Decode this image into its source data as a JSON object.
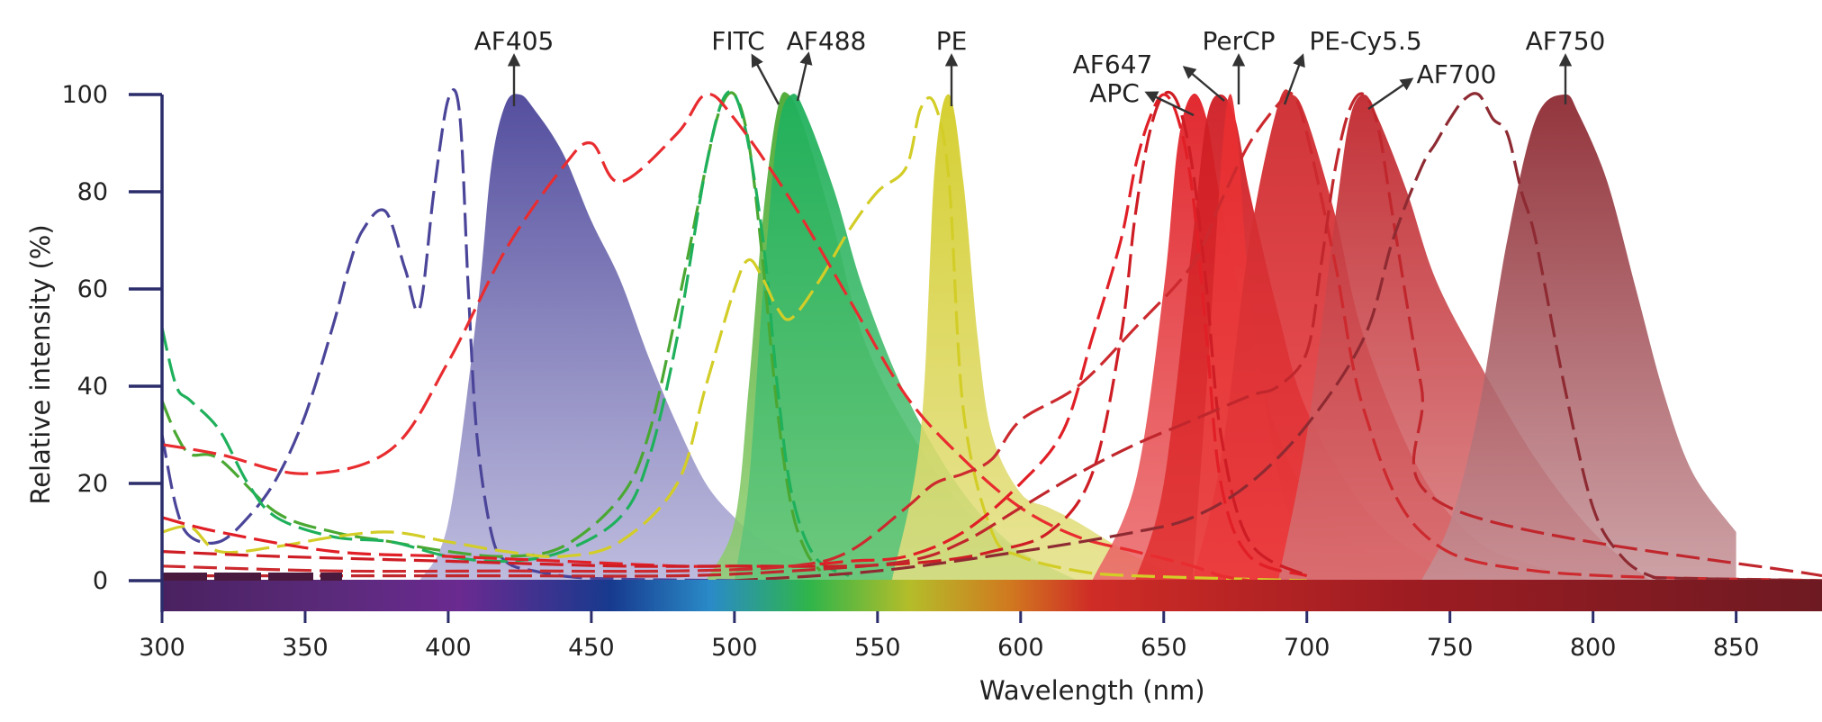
{
  "chart_data": {
    "type": "area",
    "xlabel": "Wavelength (nm)",
    "ylabel": "Relative intensity (%)",
    "xlim": [
      300,
      880
    ],
    "ylim": [
      0,
      100
    ],
    "x_ticks": [
      "300",
      "350",
      "400",
      "450",
      "500",
      "550",
      "600",
      "650",
      "700",
      "750",
      "800",
      "850"
    ],
    "y_ticks": [
      "0",
      "20",
      "40",
      "60",
      "80",
      "100"
    ],
    "grid": false,
    "legend": "none",
    "spectrum_bar": true,
    "series": [
      {
        "name": "AF405",
        "color": "#4b4599",
        "color_light": "#b2b0d8",
        "emission_x": [
          390,
          400,
          410,
          415,
          420,
          425,
          430,
          440,
          450,
          460,
          470,
          480,
          490,
          500,
          510,
          520,
          540,
          560
        ],
        "emission_y": [
          0,
          12,
          55,
          85,
          98,
          100,
          97,
          88,
          74,
          62,
          46,
          32,
          20,
          13,
          8,
          5,
          2,
          0
        ],
        "excitation_x": [
          300,
          305,
          310,
          320,
          330,
          340,
          350,
          360,
          365,
          370,
          378,
          385,
          390,
          395,
          400,
          404,
          407,
          410,
          415,
          420,
          430,
          450,
          500
        ],
        "excitation_y": [
          30,
          15,
          9,
          8,
          13,
          21,
          34,
          53,
          64,
          72,
          76,
          64,
          56,
          80,
          99,
          96,
          60,
          30,
          10,
          4,
          2,
          0.5,
          0
        ]
      },
      {
        "name": "FITC",
        "color": "#4aa832",
        "color_light": "#8fce6f",
        "emission_x": [
          490,
          500,
          505,
          510,
          515,
          519,
          525,
          535,
          545,
          560,
          580,
          600,
          620
        ],
        "emission_y": [
          0,
          12,
          40,
          75,
          97,
          100,
          92,
          72,
          50,
          32,
          15,
          6,
          0
        ],
        "excitation_x": [
          300,
          305,
          310,
          320,
          340,
          360,
          380,
          400,
          420,
          440,
          460,
          470,
          480,
          490,
          495,
          500,
          505,
          510,
          515,
          520,
          525,
          530
        ],
        "excitation_y": [
          37,
          30,
          26,
          25,
          14,
          10,
          8,
          6,
          5,
          7,
          17,
          30,
          56,
          85,
          97,
          100,
          90,
          65,
          35,
          15,
          6,
          2
        ]
      },
      {
        "name": "AF488",
        "color": "#1fb05c",
        "color_light": "#64c67c",
        "emission_x": [
          500,
          505,
          510,
          515,
          520,
          525,
          535,
          545,
          560,
          580,
          600,
          620
        ],
        "emission_y": [
          0,
          20,
          60,
          92,
          100,
          96,
          80,
          60,
          38,
          18,
          6,
          0
        ],
        "excitation_x": [
          300,
          305,
          310,
          320,
          330,
          340,
          360,
          380,
          400,
          420,
          440,
          460,
          470,
          480,
          490,
          497,
          503,
          510,
          515,
          520,
          528,
          540
        ],
        "excitation_y": [
          52,
          40,
          37,
          31,
          20,
          13,
          9,
          8,
          5,
          4,
          6,
          13,
          25,
          50,
          85,
          100,
          95,
          70,
          40,
          18,
          5,
          1
        ]
      },
      {
        "name": "PE",
        "color": "#d3cd27",
        "color_light": "#e3df84",
        "emission_x": [
          555,
          565,
          570,
          575,
          580,
          585,
          590,
          600,
          610,
          620,
          640,
          660
        ],
        "emission_y": [
          0,
          30,
          85,
          100,
          82,
          50,
          30,
          18,
          15,
          12,
          5,
          0
        ],
        "excitation_x": [
          300,
          310,
          320,
          340,
          360,
          380,
          400,
          420,
          440,
          460,
          480,
          490,
          500,
          505,
          510,
          515,
          520,
          530,
          540,
          550,
          560,
          565,
          570,
          575,
          580,
          590,
          600,
          620,
          640,
          700
        ],
        "excitation_y": [
          10,
          11,
          6,
          7,
          9,
          10,
          8,
          6,
          5,
          8,
          20,
          40,
          60,
          66,
          62,
          56,
          54,
          62,
          72,
          80,
          85,
          97,
          98,
          82,
          35,
          10,
          5,
          2,
          1,
          0
        ]
      },
      {
        "name": "APC",
        "color": "#e01f26",
        "color_light": "#ea6567",
        "emission_x": [
          625,
          640,
          650,
          655,
          660,
          665,
          670,
          680,
          690,
          700,
          720,
          740
        ],
        "emission_y": [
          0,
          20,
          60,
          90,
          100,
          95,
          78,
          50,
          30,
          18,
          6,
          0
        ],
        "excitation_x": [
          300,
          320,
          360,
          400,
          440,
          480,
          500,
          520,
          540,
          560,
          580,
          600,
          615,
          625,
          635,
          640,
          645,
          650,
          655,
          660,
          665,
          670,
          680,
          700
        ],
        "excitation_y": [
          13,
          10,
          6,
          5,
          4,
          3,
          3,
          3,
          4,
          5,
          10,
          20,
          31,
          50,
          70,
          85,
          95,
          100,
          95,
          80,
          50,
          20,
          5,
          1
        ]
      },
      {
        "name": "AF647",
        "color": "#ce1d24",
        "color_light": "#e23030",
        "emission_x": [
          640,
          650,
          660,
          665,
          670,
          675,
          680,
          690,
          700,
          720,
          740,
          760
        ],
        "emission_y": [
          0,
          20,
          70,
          95,
          100,
          95,
          80,
          55,
          35,
          15,
          5,
          0
        ],
        "excitation_x": [
          300,
          340,
          400,
          460,
          500,
          540,
          570,
          590,
          610,
          625,
          635,
          640,
          645,
          650,
          655,
          660,
          665,
          670,
          680,
          700
        ],
        "excitation_y": [
          6,
          5,
          4,
          3,
          3,
          3,
          4,
          6,
          10,
          22,
          50,
          75,
          92,
          100,
          98,
          85,
          60,
          30,
          8,
          1
        ]
      },
      {
        "name": "PerCP",
        "color": "#e82c2f",
        "color_light": "#eb4a49",
        "emission_x": [
          660,
          665,
          670,
          673,
          676,
          680,
          690,
          700,
          720
        ],
        "emission_y": [
          0,
          40,
          85,
          100,
          90,
          60,
          22,
          8,
          0
        ],
        "excitation_x": [
          300,
          320,
          350,
          380,
          400,
          420,
          440,
          450,
          460,
          480,
          490,
          500,
          520,
          540,
          560,
          580,
          600,
          620,
          640,
          660,
          670,
          680
        ],
        "excitation_y": [
          28,
          26,
          22,
          27,
          45,
          68,
          85,
          90,
          82,
          92,
          100,
          95,
          78,
          58,
          38,
          25,
          15,
          9,
          6,
          3,
          1,
          0
        ]
      },
      {
        "name": "PE-Cy5.5",
        "color": "#cc2a2e",
        "color_light": "#ec3a3d",
        "emission_x": [
          660,
          670,
          680,
          690,
          695,
          700,
          710,
          720,
          740,
          760,
          780,
          800
        ],
        "emission_y": [
          0,
          25,
          70,
          98,
          100,
          95,
          75,
          50,
          22,
          8,
          3,
          0
        ],
        "excitation_x": [
          300,
          360,
          420,
          480,
          520,
          540,
          560,
          570,
          580,
          590,
          600,
          620,
          640,
          660,
          670,
          680,
          690,
          695,
          700,
          710,
          720,
          740,
          780,
          880
        ],
        "excitation_y": [
          3,
          2,
          2,
          2,
          3,
          6,
          15,
          20,
          22,
          25,
          33,
          40,
          52,
          65,
          78,
          90,
          98,
          100,
          92,
          65,
          35,
          10,
          2,
          0
        ]
      },
      {
        "name": "AF700",
        "color": "#c0272d",
        "color_light": "#d67578",
        "emission_x": [
          690,
          700,
          710,
          715,
          720,
          725,
          735,
          745,
          760,
          780,
          800,
          820
        ],
        "emission_y": [
          0,
          30,
          75,
          95,
          100,
          95,
          80,
          62,
          45,
          25,
          10,
          0
        ],
        "excitation_x": [
          300,
          360,
          420,
          480,
          520,
          560,
          580,
          600,
          620,
          640,
          660,
          680,
          690,
          700,
          705,
          710,
          715,
          720,
          725,
          730,
          740,
          750,
          880
        ],
        "excitation_y": [
          1,
          1,
          1,
          1,
          2,
          4,
          8,
          15,
          22,
          28,
          33,
          38,
          40,
          47,
          65,
          85,
          97,
          100,
          93,
          75,
          40,
          15,
          1
        ]
      },
      {
        "name": "AF750",
        "color": "#8e2a32",
        "color_light": "#c49196",
        "emission_x": [
          740,
          750,
          760,
          770,
          780,
          790,
          795,
          805,
          815,
          825,
          835,
          850
        ],
        "emission_y": [
          0,
          12,
          35,
          70,
          95,
          100,
          96,
          82,
          60,
          38,
          22,
          10
        ],
        "excitation_x": [
          500,
          550,
          600,
          640,
          660,
          680,
          700,
          720,
          730,
          740,
          745,
          750,
          755,
          760,
          765,
          770,
          775,
          780,
          790,
          800,
          810,
          820,
          830,
          880
        ],
        "excitation_y": [
          0,
          2,
          6,
          10,
          13,
          20,
          32,
          50,
          70,
          85,
          90,
          95,
          99,
          100,
          95,
          92,
          80,
          70,
          40,
          15,
          5,
          1,
          0.5,
          0
        ]
      }
    ],
    "annotations": [
      {
        "text": "AF405",
        "x": 422,
        "y": 100
      },
      {
        "text": "FITC",
        "x": 515,
        "y": 100
      },
      {
        "text": "AF488",
        "x": 520,
        "y": 100
      },
      {
        "text": "PE",
        "x": 576,
        "y": 100
      },
      {
        "text": "AF647",
        "x": 670,
        "y": 100
      },
      {
        "text": "APC",
        "x": 660,
        "y": 100
      },
      {
        "text": "PerCP",
        "x": 673,
        "y": 100
      },
      {
        "text": "PE-Cy5.5",
        "x": 695,
        "y": 100
      },
      {
        "text": "AF700",
        "x": 720,
        "y": 100
      },
      {
        "text": "AF750",
        "x": 790,
        "y": 100
      }
    ]
  }
}
